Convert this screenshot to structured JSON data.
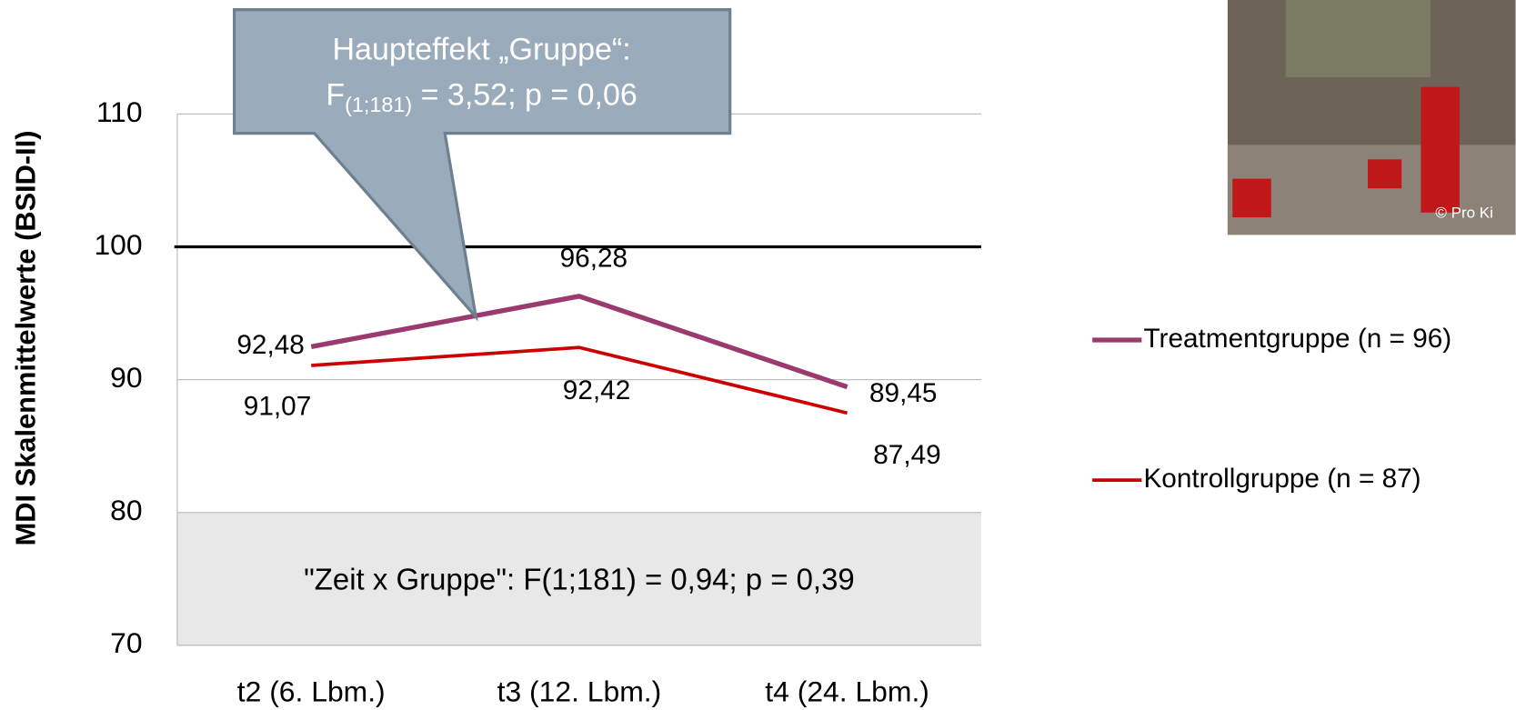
{
  "chart_data": {
    "type": "line",
    "y_label": "MDI Skalenmittelwerte (BSID-II)",
    "categories": [
      "t2 (6. Lbm.)",
      "t3 (12. Lbm.)",
      "t4 (24. Lbm.)"
    ],
    "series": [
      {
        "name": "Treatmentgruppe (n = 96)",
        "color": "#9b3a6e",
        "values": [
          92.48,
          96.28,
          89.45
        ],
        "value_labels": [
          "92,48",
          "96,28",
          "89,45"
        ]
      },
      {
        "name": "Kontrollgruppe (n = 87)",
        "color": "#cc0000",
        "values": [
          91.07,
          92.42,
          87.49
        ],
        "value_labels": [
          "91,07",
          "92,42",
          "87,49"
        ]
      }
    ],
    "ylim": [
      70,
      110
    ],
    "yticks": [
      70,
      80,
      90,
      100,
      110
    ],
    "grid": true,
    "reference_line": 100,
    "shaded_range": [
      70,
      80
    ],
    "shaded_annotation": "\"Zeit x Gruppe\": F(1;181) = 0,94; p = 0,39",
    "callout": {
      "line1": "Haupteffekt „Gruppe“:",
      "line2_main": "F",
      "line2_sub": "(1;181)",
      "line2_rest": " = 3,52; p = 0,06"
    },
    "legend": "right",
    "photo_credit": "© Pro Ki"
  }
}
